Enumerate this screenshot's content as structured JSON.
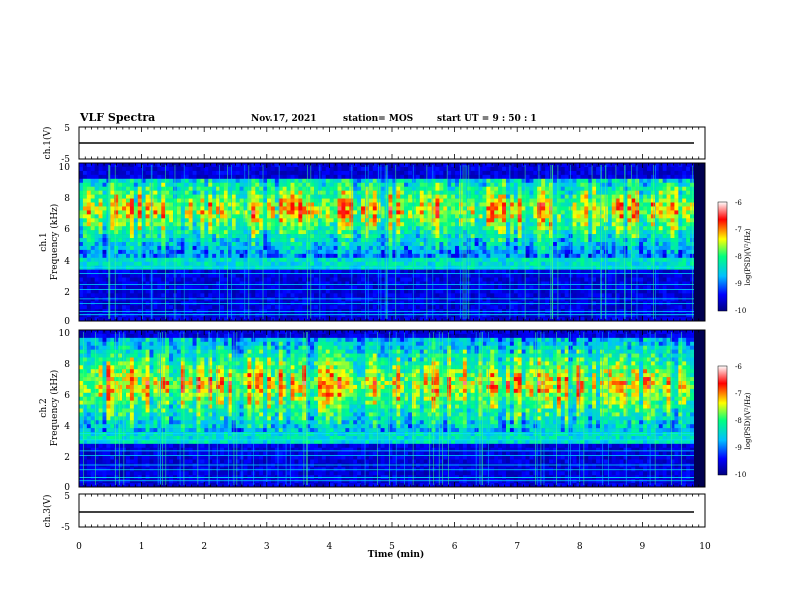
{
  "header": {
    "title": "VLF Spectra",
    "date": "Nov.17, 2021",
    "station": "station= MOS",
    "start_ut": "start  UT =   9 : 50 : 1"
  },
  "colors": {
    "background": "#000080",
    "colormap": [
      "#000080",
      "#0000ff",
      "#00bfff",
      "#00ff80",
      "#ffff00",
      "#ff0000",
      "#ffffff"
    ]
  },
  "chart_data": [
    {
      "type": "line",
      "ylabel": "ch.1(V)",
      "xlim": [
        0,
        10
      ],
      "ylim": [
        -5,
        5
      ],
      "yticks": [
        "5",
        "-5"
      ],
      "series": [
        {
          "values": [
            [
              0,
              0
            ],
            [
              10,
              0
            ]
          ]
        }
      ]
    },
    {
      "type": "heatmap",
      "ylabel_top": "ch.1",
      "ylabel": "Frequency (kHz)",
      "xlim": [
        0,
        10
      ],
      "ylim": [
        0,
        10
      ],
      "yticks": [
        "0",
        "2",
        "4",
        "6",
        "8",
        "10"
      ],
      "colorbar": {
        "label": "log(PSD)(V²/Hz)",
        "ticks": [
          "-6",
          "-7",
          "-8",
          "-9",
          "-10"
        ],
        "range": [
          -10,
          -6
        ]
      },
      "band_khz": [
        4,
        9
      ],
      "band_peak_khz": 7
    },
    {
      "type": "heatmap",
      "ylabel_top": "ch.2",
      "ylabel": "Frequency (kHz)",
      "xlim": [
        0,
        10
      ],
      "ylim": [
        0,
        10
      ],
      "yticks": [
        "0",
        "2",
        "4",
        "6",
        "8",
        "10"
      ],
      "colorbar": {
        "label": "log(PSD)(V²/Hz)",
        "ticks": [
          "-6",
          "-7",
          "-8",
          "-9",
          "-10"
        ],
        "range": [
          -10,
          -6
        ]
      },
      "band_khz": [
        3.5,
        9.5
      ],
      "band_peak_khz": 6.5
    },
    {
      "type": "line",
      "ylabel": "ch.3(V)",
      "xlim": [
        0,
        10
      ],
      "ylim": [
        -5,
        5
      ],
      "yticks": [
        "5",
        "-5"
      ],
      "xlabel": "Time (min)",
      "xticks": [
        "0",
        "1",
        "2",
        "3",
        "4",
        "5",
        "6",
        "7",
        "8",
        "9",
        "10"
      ],
      "series": [
        {
          "values": [
            [
              0,
              0
            ],
            [
              10,
              0
            ]
          ]
        }
      ]
    }
  ]
}
